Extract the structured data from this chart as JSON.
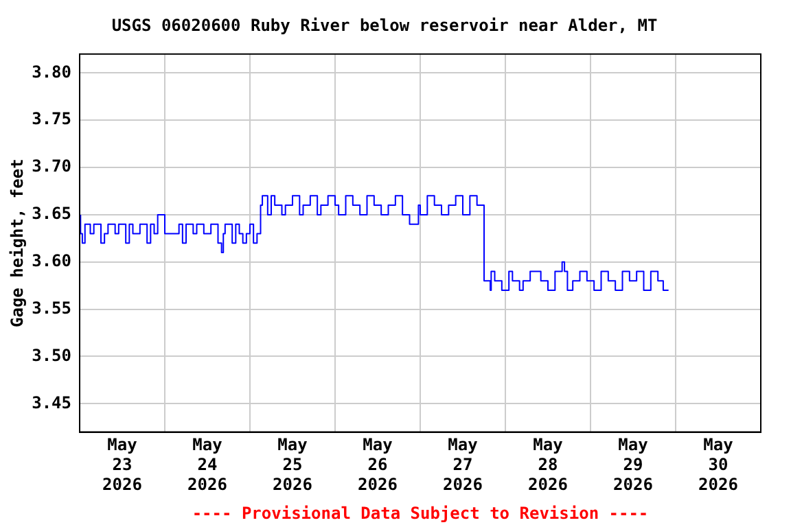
{
  "chart_data": {
    "type": "step",
    "title": "USGS 06020600 Ruby River below reservoir near Alder, MT",
    "ylabel": "Gage height, feet",
    "annotations": [
      "---- Provisional Data Subject to Revision ----"
    ],
    "x": [
      "2026-05-23T00:15",
      "2026-05-23T00:45",
      "2026-05-23T01:30",
      "2026-05-23T03:00",
      "2026-05-23T04:00",
      "2026-05-23T06:00",
      "2026-05-23T07:00",
      "2026-05-23T08:00",
      "2026-05-23T10:00",
      "2026-05-23T11:00",
      "2026-05-23T13:00",
      "2026-05-23T14:00",
      "2026-05-23T15:00",
      "2026-05-23T17:00",
      "2026-05-23T19:00",
      "2026-05-23T20:00",
      "2026-05-23T21:00",
      "2026-05-23T22:00",
      "2026-05-24T00:00",
      "2026-05-24T00:30",
      "2026-05-24T04:00",
      "2026-05-24T05:00",
      "2026-05-24T06:00",
      "2026-05-24T08:00",
      "2026-05-24T09:00",
      "2026-05-24T11:00",
      "2026-05-24T13:00",
      "2026-05-24T15:00",
      "2026-05-24T16:00",
      "2026-05-24T16:30",
      "2026-05-24T17:00",
      "2026-05-24T19:00",
      "2026-05-24T20:00",
      "2026-05-24T21:00",
      "2026-05-24T22:00",
      "2026-05-24T23:00",
      "2026-05-25T00:00",
      "2026-05-25T01:00",
      "2026-05-25T02:00",
      "2026-05-25T03:00",
      "2026-05-25T03:30",
      "2026-05-25T05:00",
      "2026-05-25T06:00",
      "2026-05-25T07:00",
      "2026-05-25T09:00",
      "2026-05-25T10:00",
      "2026-05-25T12:00",
      "2026-05-25T14:00",
      "2026-05-25T15:00",
      "2026-05-25T17:00",
      "2026-05-25T19:00",
      "2026-05-25T20:00",
      "2026-05-25T22:00",
      "2026-05-26T00:00",
      "2026-05-26T01:00",
      "2026-05-26T03:00",
      "2026-05-26T05:00",
      "2026-05-26T07:00",
      "2026-05-26T09:00",
      "2026-05-26T11:00",
      "2026-05-26T13:00",
      "2026-05-26T15:00",
      "2026-05-26T17:00",
      "2026-05-26T19:00",
      "2026-05-26T21:00",
      "2026-05-26T23:30",
      "2026-05-27T00:00",
      "2026-05-27T02:00",
      "2026-05-27T04:00",
      "2026-05-27T06:00",
      "2026-05-27T08:00",
      "2026-05-27T10:00",
      "2026-05-27T12:00",
      "2026-05-27T14:00",
      "2026-05-27T16:00",
      "2026-05-27T18:00",
      "2026-05-27T19:45",
      "2026-05-27T20:00",
      "2026-05-27T21:00",
      "2026-05-27T23:00",
      "2026-05-28T01:00",
      "2026-05-28T02:00",
      "2026-05-28T04:00",
      "2026-05-28T05:00",
      "2026-05-28T07:00",
      "2026-05-28T10:00",
      "2026-05-28T12:00",
      "2026-05-28T14:00",
      "2026-05-28T16:00",
      "2026-05-28T16:40",
      "2026-05-28T17:30",
      "2026-05-28T19:00",
      "2026-05-28T21:00",
      "2026-05-28T23:00",
      "2026-05-29T01:00",
      "2026-05-29T03:00",
      "2026-05-29T05:00",
      "2026-05-29T07:00",
      "2026-05-29T09:00",
      "2026-05-29T11:00",
      "2026-05-29T13:00",
      "2026-05-29T15:00",
      "2026-05-29T17:00",
      "2026-05-29T19:00",
      "2026-05-29T20:30",
      "2026-05-29T22:00"
    ],
    "series": [
      {
        "color": "#0000ff",
        "values": [
          3.65,
          3.63,
          3.62,
          3.64,
          3.63,
          3.64,
          3.62,
          3.63,
          3.64,
          3.63,
          3.64,
          3.62,
          3.64,
          3.63,
          3.64,
          3.62,
          3.64,
          3.63,
          3.65,
          3.63,
          3.63,
          3.64,
          3.62,
          3.64,
          3.63,
          3.64,
          3.63,
          3.64,
          3.62,
          3.61,
          3.63,
          3.64,
          3.62,
          3.64,
          3.63,
          3.62,
          3.63,
          3.64,
          3.62,
          3.63,
          3.66,
          3.67,
          3.65,
          3.67,
          3.66,
          3.65,
          3.66,
          3.67,
          3.65,
          3.66,
          3.67,
          3.65,
          3.66,
          3.67,
          3.66,
          3.65,
          3.67,
          3.66,
          3.65,
          3.67,
          3.66,
          3.65,
          3.66,
          3.67,
          3.65,
          3.64,
          3.66,
          3.65,
          3.67,
          3.66,
          3.65,
          3.66,
          3.67,
          3.65,
          3.67,
          3.66,
          3.58,
          3.57,
          3.59,
          3.58,
          3.57,
          3.59,
          3.58,
          3.57,
          3.58,
          3.59,
          3.58,
          3.57,
          3.59,
          3.6,
          3.59,
          3.57,
          3.58,
          3.59,
          3.58,
          3.57,
          3.59,
          3.58,
          3.57,
          3.59,
          3.58,
          3.59,
          3.57,
          3.59,
          3.58,
          3.57
        ]
      }
    ],
    "xlim": [
      "2026-05-23",
      "2026-05-31"
    ],
    "xticks": [
      {
        "value": "2026-05-23T12:00",
        "label": "May 23 2026"
      },
      {
        "value": "2026-05-24",
        "label": null
      },
      {
        "value": "2026-05-24T12:00",
        "label": "May 24 2026"
      },
      {
        "value": "2026-05-25",
        "label": null
      },
      {
        "value": "2026-05-25T12:00",
        "label": "May 25 2026"
      },
      {
        "value": "2026-05-26",
        "label": null
      },
      {
        "value": "2026-05-26T12:00",
        "label": "May 26 2026"
      },
      {
        "value": "2026-05-27",
        "label": null
      },
      {
        "value": "2026-05-27T12:00",
        "label": "May 27 2026"
      },
      {
        "value": "2026-05-28",
        "label": null
      },
      {
        "value": "2026-05-28T12:00",
        "label": "May 28 2026"
      },
      {
        "value": "2026-05-29",
        "label": null
      },
      {
        "value": "2026-05-29T12:00",
        "label": "May 29 2026"
      },
      {
        "value": "2026-05-30",
        "label": null
      },
      {
        "value": "2026-05-30T12:00",
        "label": "May 30 2026"
      }
    ],
    "ylim": [
      3.42,
      3.82
    ],
    "yticks": [
      {
        "value": 3.45,
        "label": "3.45"
      },
      {
        "value": 3.5,
        "label": "3.50"
      },
      {
        "value": 3.55,
        "label": "3.55"
      },
      {
        "value": 3.6,
        "label": "3.60"
      },
      {
        "value": 3.65,
        "label": "3.65"
      },
      {
        "value": 3.7,
        "label": "3.70"
      },
      {
        "value": 3.75,
        "label": "3.75"
      },
      {
        "value": 3.8,
        "label": "3.80"
      }
    ],
    "grid": true,
    "marker": "none",
    "line_style": "solid"
  }
}
